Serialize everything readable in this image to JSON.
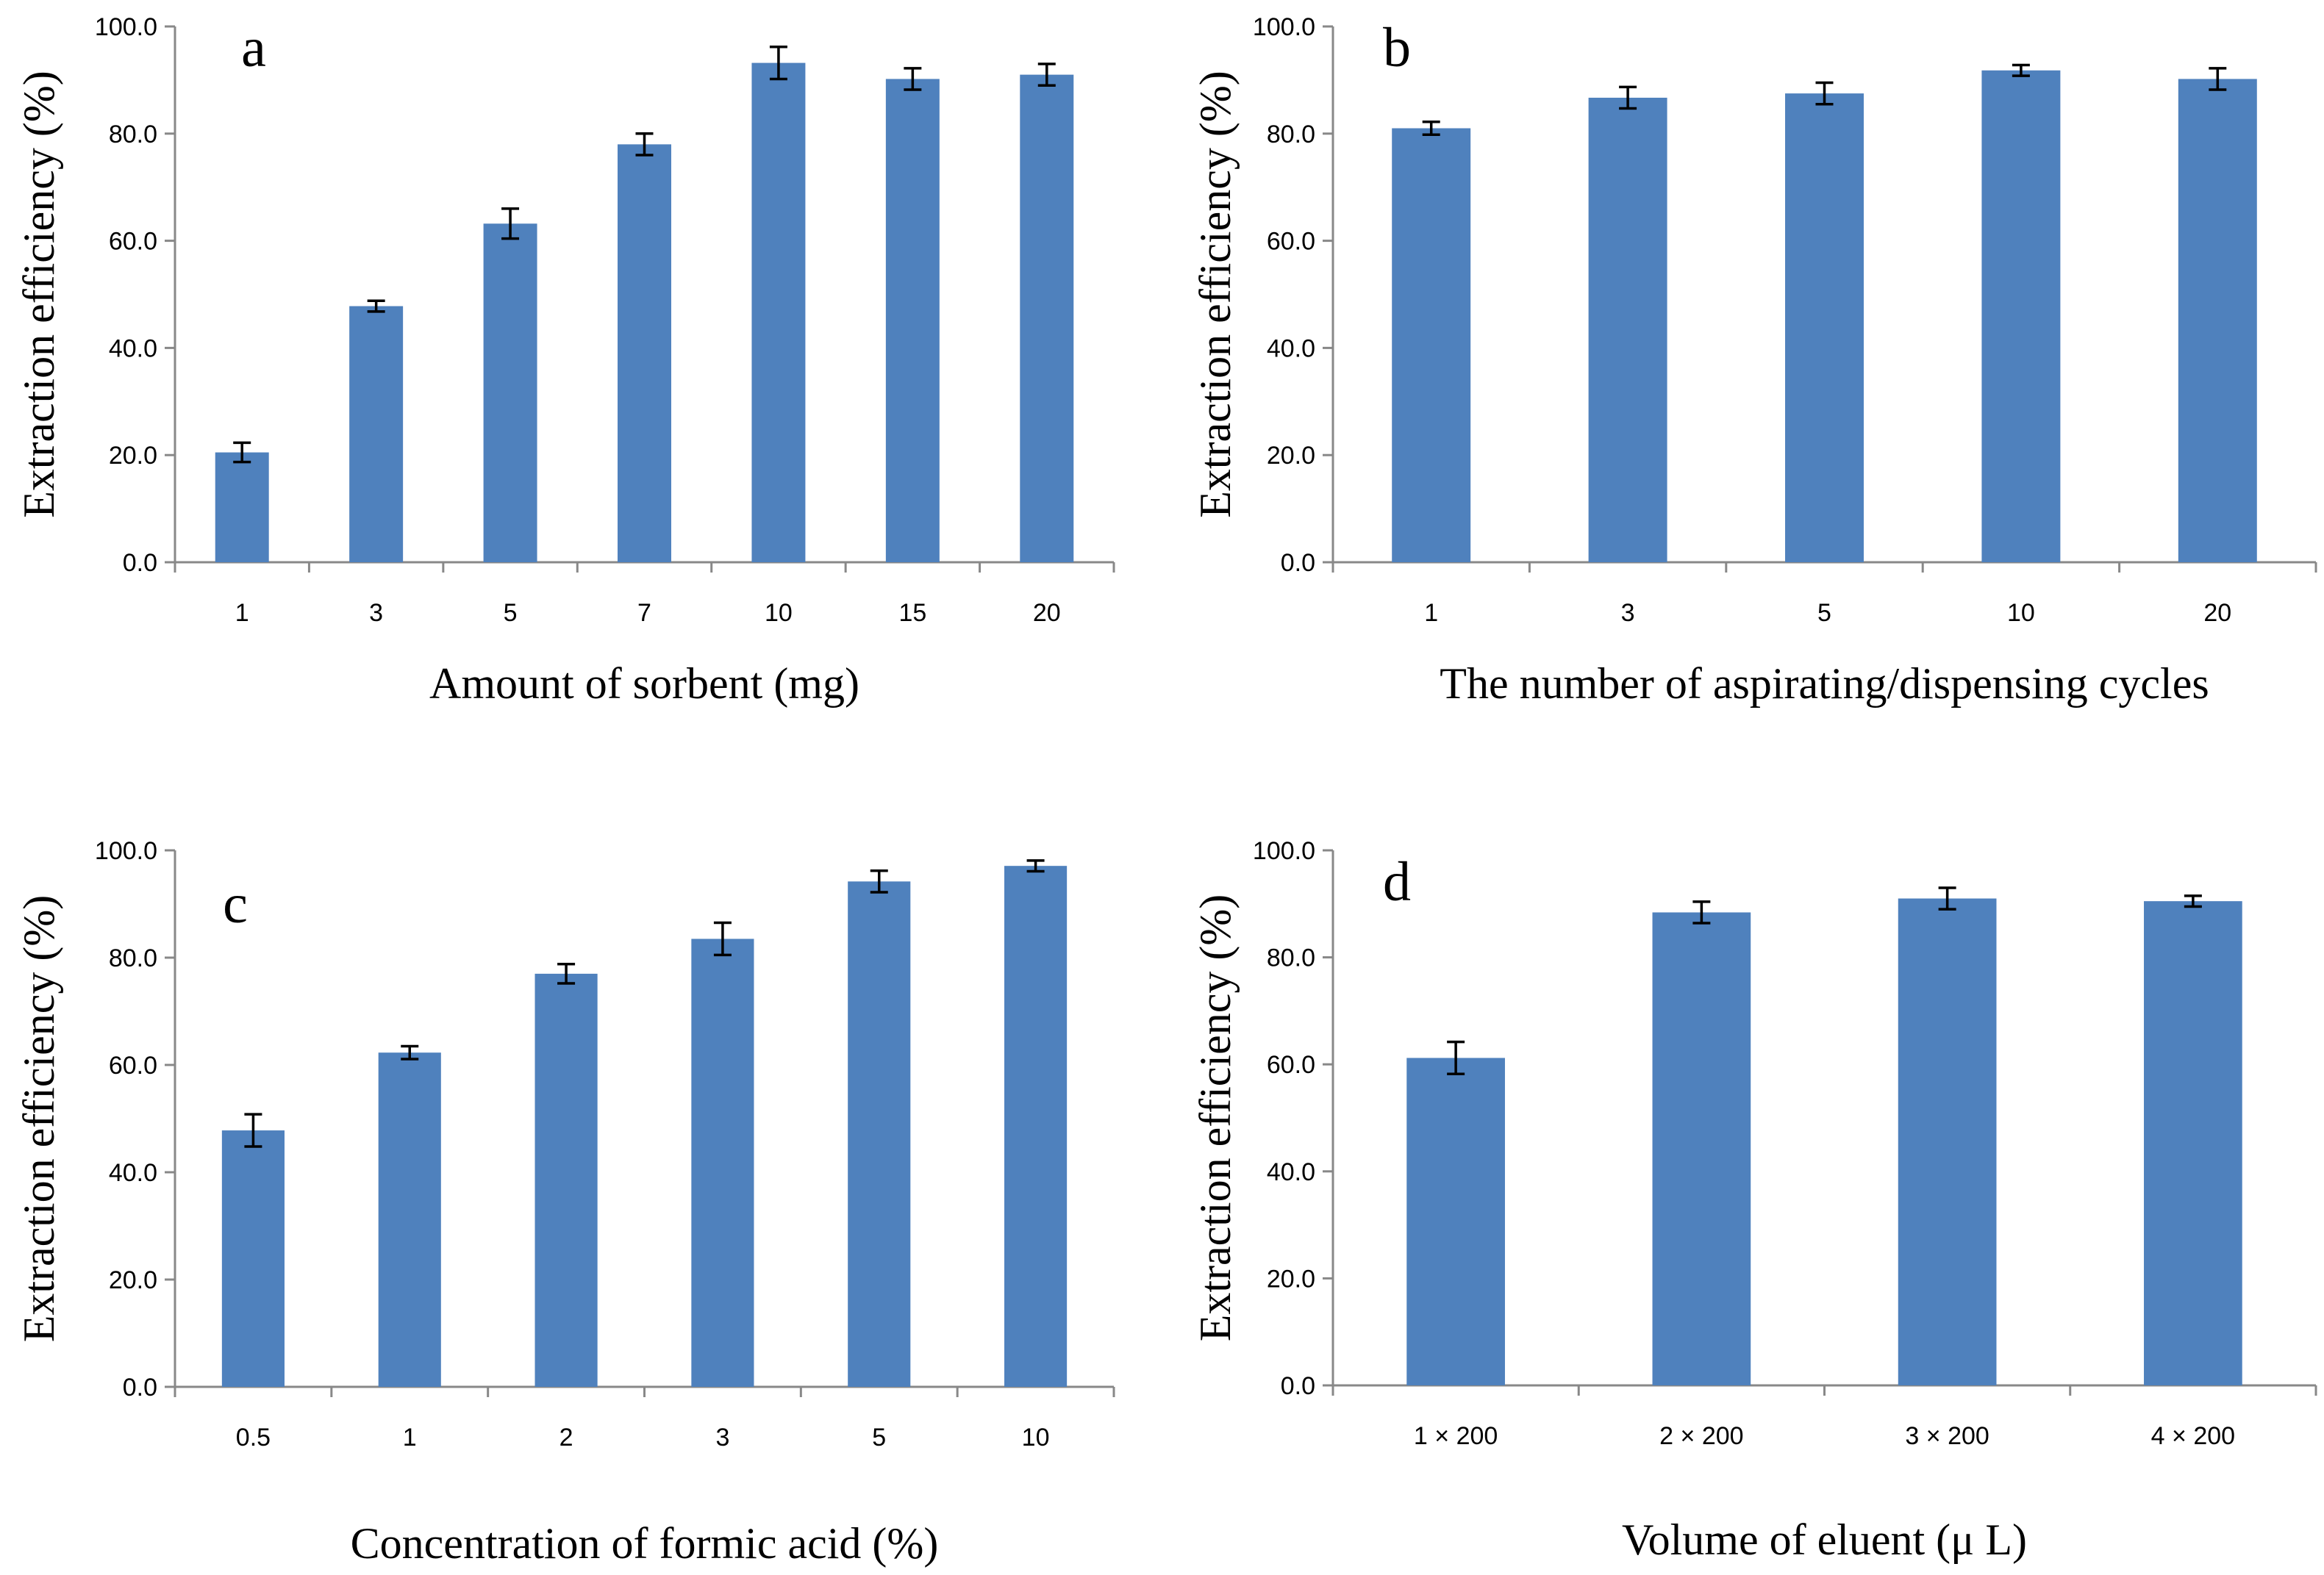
{
  "colors": {
    "bar": "#4f81bd",
    "axis": "#888888",
    "text": "#000000"
  },
  "chart_data": [
    {
      "panel": "a",
      "type": "bar",
      "xlabel": "Amount of sorbent (mg)",
      "ylabel": "Extraction efficiency (%)",
      "ylim": [
        0,
        100
      ],
      "yticks": [
        "0.0",
        "20.0",
        "40.0",
        "60.0",
        "80.0",
        "100.0"
      ],
      "categories": [
        "1",
        "3",
        "5",
        "7",
        "10",
        "15",
        "20"
      ],
      "values": [
        20.5,
        47.8,
        63.2,
        78.0,
        93.2,
        90.2,
        91.0
      ],
      "errors": [
        1.8,
        1.0,
        2.8,
        2.0,
        3.0,
        2.0,
        2.0
      ]
    },
    {
      "panel": "b",
      "type": "bar",
      "xlabel": "The number of aspirating/dispensing  cycles",
      "ylabel": "Extraction efficiency (%)",
      "ylim": [
        0,
        100
      ],
      "yticks": [
        "0.0",
        "20.0",
        "40.0",
        "60.0",
        "80.0",
        "100.0"
      ],
      "categories": [
        "1",
        "3",
        "5",
        "10",
        "20"
      ],
      "values": [
        81.0,
        86.7,
        87.5,
        91.8,
        90.2
      ],
      "errors": [
        1.2,
        2.0,
        2.0,
        1.0,
        2.0
      ]
    },
    {
      "panel": "c",
      "type": "bar",
      "xlabel": "Concentration of formic acid (%)",
      "ylabel": "Extraction efficiency  (%)",
      "ylim": [
        0,
        100
      ],
      "yticks": [
        "0.0",
        "20.0",
        "40.0",
        "60.0",
        "80.0",
        "100.0"
      ],
      "categories": [
        "0.5",
        "1",
        "2",
        "3",
        "5",
        "10"
      ],
      "values": [
        47.8,
        62.3,
        77.0,
        83.5,
        94.2,
        97.1
      ],
      "errors": [
        3.0,
        1.2,
        1.8,
        3.0,
        2.0,
        1.0
      ]
    },
    {
      "panel": "d",
      "type": "bar",
      "xlabel": "Volume of eluent  (μ L)",
      "ylabel": "Extraction efficiency (%)",
      "ylim": [
        0,
        100
      ],
      "yticks": [
        "0.0",
        "20.0",
        "40.0",
        "60.0",
        "80.0",
        "100.0"
      ],
      "categories": [
        "1 × 200",
        "2 × 200",
        "3 × 200",
        "4 × 200"
      ],
      "values": [
        61.2,
        88.4,
        91.0,
        90.5
      ],
      "errors": [
        3.0,
        2.0,
        2.0,
        1.0
      ]
    }
  ]
}
